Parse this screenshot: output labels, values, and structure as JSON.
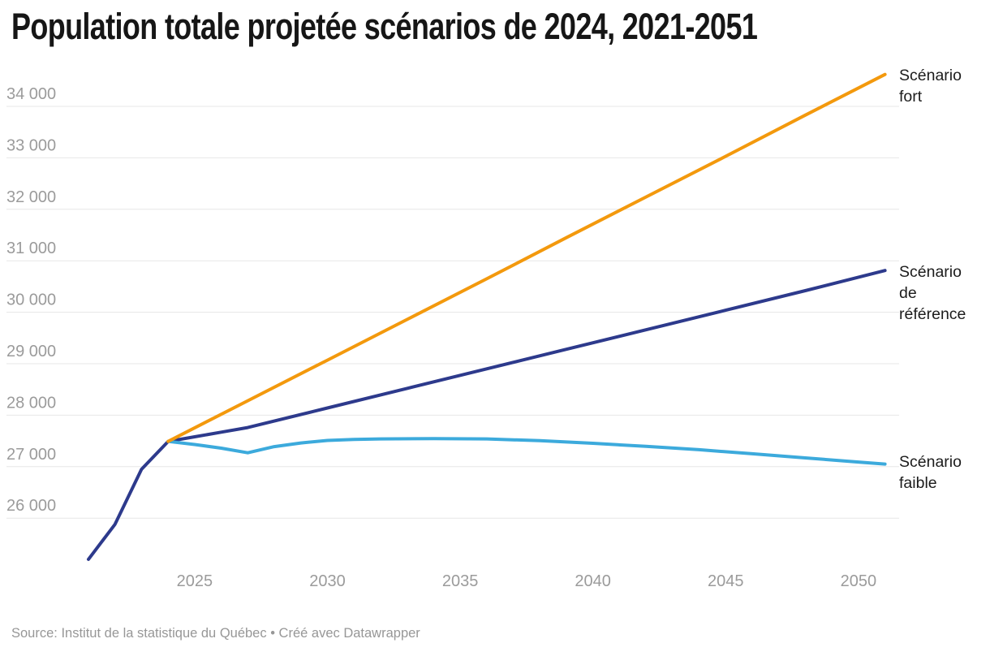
{
  "header": {
    "title": "Population totale projetée scénarios de 2024, 2021-2051"
  },
  "footer": {
    "source_note": "Source: Institut de la statistique du Québec • Créé avec Datawrapper"
  },
  "colors": {
    "background": "#ffffff",
    "title": "#161616",
    "gridline": "#e7e7e7",
    "tick_labels": "#9b9b9b",
    "series_labels": "#1c1c1c",
    "source": "#979797",
    "scenario_fort": "#f3990d",
    "scenario_reference": "#2d3a8c",
    "scenario_faible": "#3caadc"
  },
  "chart_data": {
    "type": "line",
    "title": "Population totale projetée scénarios de 2024, 2021-2051",
    "xlabel": "",
    "ylabel": "",
    "x_range": [
      2021,
      2051
    ],
    "y_range": [
      25100,
      34700
    ],
    "grid": "horizontal",
    "legend_position": "right-of-line-ends",
    "y_ticks": [
      {
        "value": 26000,
        "label": "26 000"
      },
      {
        "value": 27000,
        "label": "27 000"
      },
      {
        "value": 28000,
        "label": "28 000"
      },
      {
        "value": 29000,
        "label": "29 000"
      },
      {
        "value": 30000,
        "label": "30 000"
      },
      {
        "value": 31000,
        "label": "31 000"
      },
      {
        "value": 32000,
        "label": "32 000"
      },
      {
        "value": 33000,
        "label": "33 000"
      },
      {
        "value": 34000,
        "label": "34 000"
      }
    ],
    "x_ticks": [
      {
        "value": 2025,
        "label": "2025"
      },
      {
        "value": 2030,
        "label": "2030"
      },
      {
        "value": 2035,
        "label": "2035"
      },
      {
        "value": 2040,
        "label": "2040"
      },
      {
        "value": 2045,
        "label": "2045"
      },
      {
        "value": 2050,
        "label": "2050"
      }
    ],
    "series": [
      {
        "id": "fort",
        "name": "Scénario fort",
        "color": "#f3990d",
        "points": [
          [
            2024,
            27490
          ],
          [
            2027,
            28280
          ],
          [
            2030,
            29070
          ],
          [
            2033,
            29860
          ],
          [
            2036,
            30650
          ],
          [
            2039,
            31450
          ],
          [
            2042,
            32240
          ],
          [
            2045,
            33030
          ],
          [
            2048,
            33830
          ],
          [
            2051,
            34620
          ]
        ]
      },
      {
        "id": "reference",
        "name": "Scénario de référence",
        "color": "#2d3a8c",
        "points": [
          [
            2021,
            25200
          ],
          [
            2022,
            25880
          ],
          [
            2023,
            26950
          ],
          [
            2024,
            27490
          ],
          [
            2025,
            27580
          ],
          [
            2026,
            27670
          ],
          [
            2027,
            27760
          ],
          [
            2030,
            28140
          ],
          [
            2033,
            28520
          ],
          [
            2036,
            28900
          ],
          [
            2039,
            29280
          ],
          [
            2042,
            29660
          ],
          [
            2045,
            30040
          ],
          [
            2048,
            30420
          ],
          [
            2051,
            30810
          ]
        ]
      },
      {
        "id": "faible",
        "name": "Scénario faible",
        "color": "#3caadc",
        "points": [
          [
            2024,
            27490
          ],
          [
            2025,
            27430
          ],
          [
            2026,
            27360
          ],
          [
            2027,
            27270
          ],
          [
            2028,
            27390
          ],
          [
            2029,
            27460
          ],
          [
            2030,
            27510
          ],
          [
            2031,
            27530
          ],
          [
            2032,
            27540
          ],
          [
            2034,
            27545
          ],
          [
            2036,
            27540
          ],
          [
            2038,
            27505
          ],
          [
            2040,
            27455
          ],
          [
            2042,
            27395
          ],
          [
            2044,
            27330
          ],
          [
            2046,
            27250
          ],
          [
            2048,
            27170
          ],
          [
            2050,
            27090
          ],
          [
            2051,
            27050
          ]
        ]
      }
    ]
  }
}
